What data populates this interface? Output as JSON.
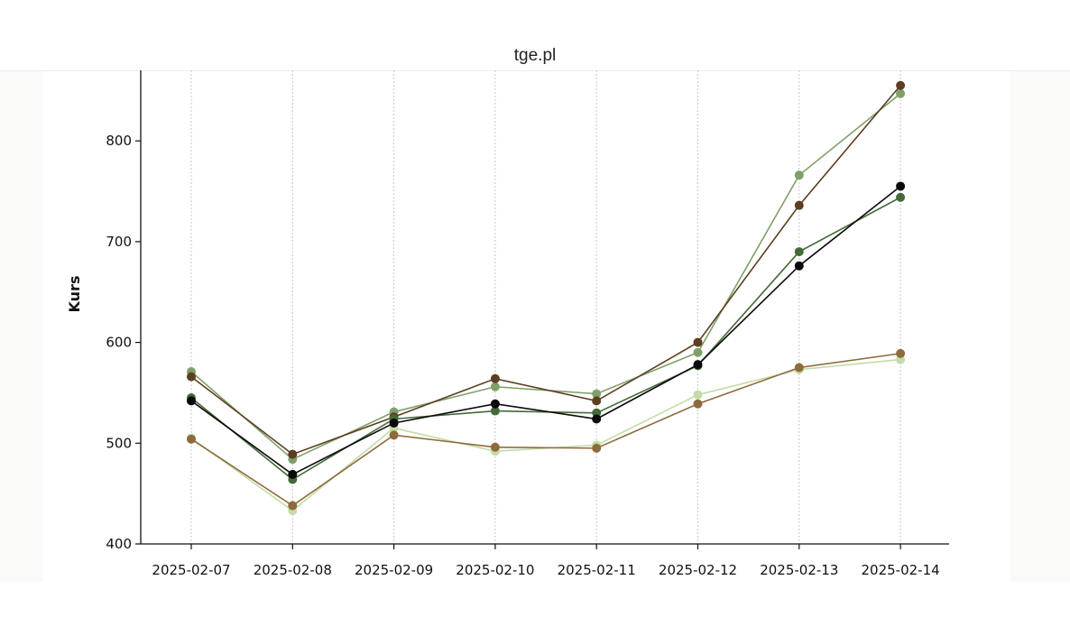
{
  "page": {
    "title": "tge.pl"
  },
  "chart_data": {
    "type": "line",
    "title": "",
    "xlabel": "",
    "ylabel": "Kurs",
    "ylim": [
      400,
      870
    ],
    "yticks": [
      400,
      500,
      600,
      700,
      800
    ],
    "grid": {
      "x": true,
      "y": false
    },
    "legend": "none",
    "x": [
      "2025-02-07",
      "2025-02-08",
      "2025-02-09",
      "2025-02-10",
      "2025-02-11",
      "2025-02-12",
      "2025-02-13",
      "2025-02-14"
    ],
    "series": [
      {
        "color": "#c3dca8",
        "values": [
          505,
          433,
          515,
          492,
          498,
          548,
          573,
          583
        ]
      },
      {
        "color": "#8e6b3c",
        "values": [
          504,
          438,
          508,
          496,
          495,
          539,
          575,
          589
        ]
      },
      {
        "color": "#7fa068",
        "values": [
          571,
          484,
          531,
          556,
          549,
          590,
          766,
          847
        ]
      },
      {
        "color": "#5c3f22",
        "values": [
          566,
          489,
          526,
          564,
          542,
          600,
          736,
          855
        ]
      },
      {
        "color": "#45693a",
        "values": [
          545,
          464,
          524,
          532,
          530,
          577,
          690,
          744
        ]
      },
      {
        "color": "#0a0a0a",
        "values": [
          542,
          469,
          520,
          539,
          524,
          578,
          676,
          755
        ]
      }
    ]
  }
}
